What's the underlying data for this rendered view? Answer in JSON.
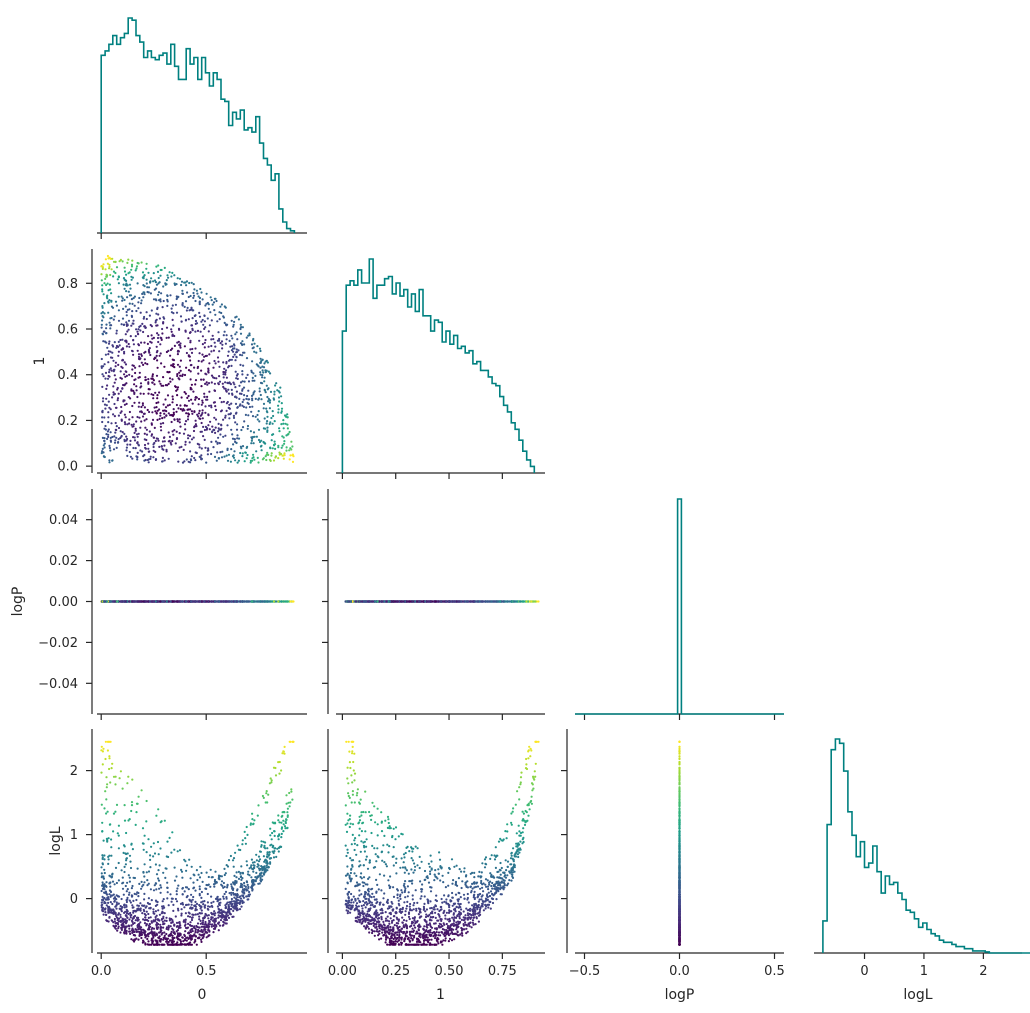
{
  "chart_data": {
    "type": "scatter",
    "layout": "corner-pairplot",
    "variables": [
      "0",
      "1",
      "logP",
      "logL"
    ],
    "diag_color": "#008080",
    "colormap": "viridis",
    "color_by": "logL",
    "ranges": {
      "0": [
        -0.02,
        0.98
      ],
      "1": [
        -0.03,
        0.95
      ],
      "logP": [
        -0.055,
        0.055
      ],
      "logP_x": [
        -0.55,
        0.55
      ],
      "logL": [
        -0.85,
        2.65
      ]
    },
    "ticks": {
      "0": {
        "values": [
          0,
          0.5
        ],
        "labels": [
          "0.0",
          "0.5"
        ]
      },
      "1_x": {
        "values": [
          0,
          0.25,
          0.5,
          0.75
        ],
        "labels": [
          "0.00",
          "0.25",
          "0.50",
          "0.75"
        ]
      },
      "1_y": {
        "values": [
          0,
          0.2,
          0.4,
          0.6,
          0.8
        ],
        "labels": [
          "0.0",
          "0.2",
          "0.4",
          "0.6",
          "0.8"
        ]
      },
      "logP_x": {
        "values": [
          -0.5,
          0,
          0.5
        ],
        "labels": [
          "−0.5",
          "0.0",
          "0.5"
        ]
      },
      "logP_y": {
        "values": [
          -0.04,
          -0.02,
          0,
          0.02,
          0.04
        ],
        "labels": [
          "−0.04",
          "−0.02",
          "0.00",
          "0.02",
          "0.04"
        ]
      },
      "logL_x": {
        "values": [
          0,
          1,
          2
        ],
        "labels": [
          "0",
          "1",
          "2"
        ]
      },
      "logL_y": {
        "values": [
          0,
          1,
          2
        ],
        "labels": [
          "0",
          "1",
          "2"
        ]
      }
    },
    "histograms": {
      "0": {
        "bin_edges": [
          0.0,
          0.0184,
          0.0368,
          0.0552,
          0.0736,
          0.092,
          0.1104,
          0.1288,
          0.1472,
          0.1656,
          0.184,
          0.2024,
          0.2208,
          0.2392,
          0.2576,
          0.276,
          0.2944,
          0.3128,
          0.3312,
          0.3496,
          0.368,
          0.3864,
          0.4048,
          0.4232,
          0.4416,
          0.46,
          0.4784,
          0.4968,
          0.5152,
          0.5336,
          0.552,
          0.5704,
          0.5888,
          0.6072,
          0.6256,
          0.644,
          0.6624,
          0.6808,
          0.6992,
          0.7176,
          0.736,
          0.7544,
          0.7728,
          0.7912,
          0.8096,
          0.828,
          0.8464,
          0.8648,
          0.8832,
          0.9016,
          0.92
        ],
        "counts": [
          0.81,
          0.83,
          0.86,
          0.9,
          0.86,
          0.89,
          0.91,
          0.98,
          0.97,
          0.9,
          0.87,
          0.8,
          0.83,
          0.8,
          0.79,
          0.81,
          0.82,
          0.77,
          0.86,
          0.76,
          0.7,
          0.7,
          0.84,
          0.77,
          0.8,
          0.7,
          0.8,
          0.73,
          0.67,
          0.73,
          0.7,
          0.61,
          0.6,
          0.49,
          0.55,
          0.52,
          0.56,
          0.47,
          0.48,
          0.46,
          0.53,
          0.41,
          0.34,
          0.31,
          0.24,
          0.27,
          0.11,
          0.05,
          0.02,
          0.01
        ]
      },
      "1": {
        "bin_edges": [
          0.0,
          0.018,
          0.036,
          0.054,
          0.072,
          0.09,
          0.108,
          0.126,
          0.144,
          0.162,
          0.18,
          0.198,
          0.216,
          0.234,
          0.252,
          0.27,
          0.288,
          0.306,
          0.324,
          0.342,
          0.36,
          0.378,
          0.396,
          0.414,
          0.432,
          0.45,
          0.468,
          0.486,
          0.504,
          0.522,
          0.54,
          0.558,
          0.576,
          0.594,
          0.612,
          0.63,
          0.648,
          0.666,
          0.684,
          0.702,
          0.72,
          0.738,
          0.756,
          0.774,
          0.792,
          0.81,
          0.828,
          0.846,
          0.864,
          0.882,
          0.9
        ],
        "counts": [
          0.65,
          0.86,
          0.88,
          0.86,
          0.93,
          0.87,
          0.87,
          0.98,
          0.8,
          0.86,
          0.86,
          0.89,
          0.9,
          0.82,
          0.87,
          0.81,
          0.84,
          0.76,
          0.82,
          0.74,
          0.84,
          0.72,
          0.72,
          0.65,
          0.7,
          0.69,
          0.6,
          0.65,
          0.59,
          0.63,
          0.57,
          0.58,
          0.55,
          0.56,
          0.5,
          0.51,
          0.47,
          0.47,
          0.44,
          0.41,
          0.4,
          0.35,
          0.31,
          0.28,
          0.23,
          0.2,
          0.15,
          0.1,
          0.06,
          0.03
        ]
      },
      "logP": {
        "bin_edges": [
          -0.01,
          0.01
        ],
        "counts": [
          1.0
        ]
      },
      "logL": {
        "bin_edges": [
          -0.7,
          -0.63,
          -0.56,
          -0.49,
          -0.42,
          -0.35,
          -0.28,
          -0.21,
          -0.14,
          -0.07,
          0.0,
          0.07,
          0.14,
          0.21,
          0.28,
          0.35,
          0.42,
          0.49,
          0.56,
          0.63,
          0.7,
          0.77,
          0.84,
          0.91,
          0.98,
          1.05,
          1.12,
          1.19,
          1.26,
          1.33,
          1.4,
          1.47,
          1.54,
          1.61,
          1.68,
          1.75,
          1.82,
          1.89,
          1.96,
          2.03,
          2.1,
          2.17,
          2.24,
          2.31,
          2.38,
          2.45,
          2.52,
          2.59,
          2.66,
          2.73,
          2.8
        ],
        "counts": [
          0.15,
          0.6,
          0.95,
          1.0,
          0.98,
          0.85,
          0.66,
          0.55,
          0.45,
          0.52,
          0.4,
          0.42,
          0.5,
          0.38,
          0.28,
          0.36,
          0.32,
          0.33,
          0.28,
          0.25,
          0.2,
          0.19,
          0.16,
          0.12,
          0.14,
          0.11,
          0.09,
          0.08,
          0.06,
          0.05,
          0.05,
          0.04,
          0.03,
          0.03,
          0.02,
          0.02,
          0.01,
          0.01,
          0.01,
          0.005,
          0,
          0,
          0,
          0,
          0,
          0,
          0,
          0,
          0,
          0
        ]
      }
    },
    "xlabels": [
      "0",
      "1",
      "logP",
      "logL"
    ],
    "ylabels": [
      "",
      "1",
      "logP",
      "logL"
    ]
  }
}
